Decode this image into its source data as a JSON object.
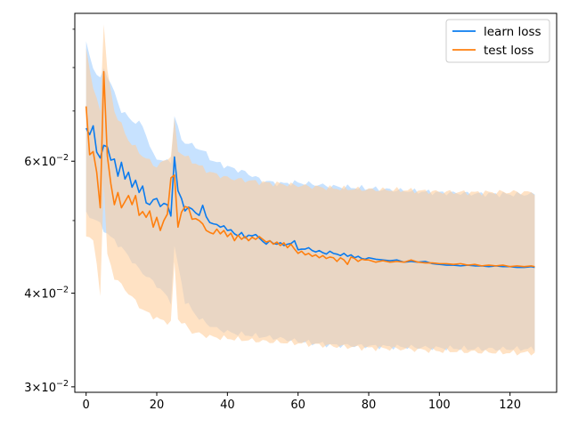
{
  "chart_data": {
    "type": "line",
    "title": "",
    "xlabel": "",
    "ylabel": "",
    "xlim": [
      -3.2,
      133.2
    ],
    "ylim": [
      0.0295,
      0.0945
    ],
    "yscale": "log",
    "grid": false,
    "legend_placement": "top-right",
    "x_ticks": [
      0,
      20,
      40,
      60,
      80,
      100,
      120
    ],
    "x_tick_labels": [
      "0",
      "20",
      "40",
      "60",
      "80",
      "100",
      "120"
    ],
    "y_ticks": [
      0.03,
      0.04,
      0.06
    ],
    "y_tick_labels": [
      {
        "base": "3",
        "exp": "−2"
      },
      {
        "base": "4",
        "exp": "−2"
      },
      {
        "base": "6",
        "exp": "−2"
      }
    ],
    "y_minor_ticks": [
      0.05,
      0.07,
      0.08,
      0.09
    ],
    "series": [
      {
        "name": "learn loss",
        "color": "#0a7bef",
        "band_color": "#8fc6ff",
        "knots": [
          [
            0,
            0.0664
          ],
          [
            1,
            0.0651
          ],
          [
            2,
            0.0669
          ],
          [
            3,
            0.0617
          ],
          [
            4,
            0.0606
          ],
          [
            5,
            0.063
          ],
          [
            6,
            0.0627
          ],
          [
            7,
            0.0602
          ],
          [
            8,
            0.0604
          ],
          [
            9,
            0.0573
          ],
          [
            10,
            0.0598
          ],
          [
            11,
            0.0568
          ],
          [
            12,
            0.058
          ],
          [
            13,
            0.0554
          ],
          [
            14,
            0.0566
          ],
          [
            15,
            0.0545
          ],
          [
            16,
            0.0556
          ],
          [
            17,
            0.0528
          ],
          [
            18,
            0.0525
          ],
          [
            19,
            0.0533
          ],
          [
            20,
            0.0535
          ],
          [
            21,
            0.0522
          ],
          [
            22,
            0.0527
          ],
          [
            23,
            0.0525
          ],
          [
            24,
            0.0507
          ],
          [
            25,
            0.0608
          ],
          [
            26,
            0.0548
          ],
          [
            27,
            0.0535
          ],
          [
            28,
            0.0515
          ],
          [
            29,
            0.0521
          ],
          [
            30,
            0.0518
          ],
          [
            31,
            0.0512
          ],
          [
            32,
            0.0508
          ],
          [
            33,
            0.0524
          ],
          [
            34,
            0.0506
          ],
          [
            35,
            0.0497
          ],
          [
            36,
            0.0495
          ],
          [
            37,
            0.0494
          ],
          [
            38,
            0.049
          ],
          [
            39,
            0.0492
          ],
          [
            40,
            0.0485
          ],
          [
            41,
            0.0486
          ],
          [
            42,
            0.048
          ],
          [
            43,
            0.0477
          ],
          [
            44,
            0.0482
          ],
          [
            45,
            0.0474
          ],
          [
            46,
            0.0478
          ],
          [
            47,
            0.0477
          ],
          [
            48,
            0.0479
          ],
          [
            49,
            0.0474
          ],
          [
            50,
            0.0469
          ],
          [
            51,
            0.0465
          ],
          [
            52,
            0.047
          ],
          [
            53,
            0.0466
          ],
          [
            54,
            0.0465
          ],
          [
            55,
            0.0467
          ],
          [
            56,
            0.0463
          ],
          [
            57,
            0.0465
          ],
          [
            58,
            0.0466
          ],
          [
            59,
            0.047
          ],
          [
            60,
            0.0457
          ],
          [
            61,
            0.0458
          ],
          [
            62,
            0.0458
          ],
          [
            63,
            0.046
          ],
          [
            64,
            0.0456
          ],
          [
            65,
            0.0454
          ],
          [
            66,
            0.0456
          ],
          [
            67,
            0.0453
          ],
          [
            68,
            0.0451
          ],
          [
            69,
            0.0455
          ],
          [
            70,
            0.0452
          ],
          [
            71,
            0.0451
          ],
          [
            72,
            0.0449
          ],
          [
            73,
            0.0452
          ],
          [
            74,
            0.0448
          ],
          [
            75,
            0.045
          ],
          [
            76,
            0.0446
          ],
          [
            77,
            0.0448
          ],
          [
            78,
            0.0445
          ],
          [
            79,
            0.0444
          ],
          [
            80,
            0.0446
          ],
          [
            82,
            0.0444
          ],
          [
            84,
            0.0443
          ],
          [
            86,
            0.0442
          ],
          [
            88,
            0.0443
          ],
          [
            90,
            0.044
          ],
          [
            92,
            0.0441
          ],
          [
            94,
            0.044
          ],
          [
            96,
            0.0441
          ],
          [
            98,
            0.0438
          ],
          [
            100,
            0.0437
          ],
          [
            102,
            0.0436
          ],
          [
            104,
            0.0436
          ],
          [
            106,
            0.0435
          ],
          [
            108,
            0.0436
          ],
          [
            110,
            0.0435
          ],
          [
            112,
            0.0435
          ],
          [
            114,
            0.0434
          ],
          [
            116,
            0.0435
          ],
          [
            118,
            0.0434
          ],
          [
            120,
            0.0434
          ],
          [
            122,
            0.0433
          ],
          [
            124,
            0.0433
          ],
          [
            126,
            0.0434
          ],
          [
            127,
            0.0433
          ]
        ],
        "band_upper": [
          [
            0,
            0.086
          ],
          [
            2,
            0.08
          ],
          [
            4,
            0.077
          ],
          [
            5,
            0.08
          ],
          [
            7,
            0.076
          ],
          [
            10,
            0.07
          ],
          [
            13,
            0.068
          ],
          [
            16,
            0.067
          ],
          [
            19,
            0.061
          ],
          [
            22,
            0.06
          ],
          [
            24,
            0.06
          ],
          [
            25,
            0.069
          ],
          [
            27,
            0.064
          ],
          [
            30,
            0.063
          ],
          [
            33,
            0.062
          ],
          [
            36,
            0.06
          ],
          [
            40,
            0.059
          ],
          [
            45,
            0.058
          ],
          [
            50,
            0.0565
          ],
          [
            55,
            0.056
          ],
          [
            60,
            0.0562
          ],
          [
            70,
            0.0555
          ],
          [
            80,
            0.0552
          ],
          [
            90,
            0.0548
          ],
          [
            100,
            0.0545
          ],
          [
            110,
            0.0543
          ],
          [
            120,
            0.0542
          ],
          [
            127,
            0.0542
          ]
        ],
        "band_lower": [
          [
            0,
            0.051
          ],
          [
            3,
            0.05
          ],
          [
            6,
            0.048
          ],
          [
            10,
            0.046
          ],
          [
            15,
            0.043
          ],
          [
            20,
            0.041
          ],
          [
            24,
            0.039
          ],
          [
            25,
            0.046
          ],
          [
            28,
            0.039
          ],
          [
            32,
            0.037
          ],
          [
            36,
            0.036
          ],
          [
            40,
            0.0355
          ],
          [
            45,
            0.0352
          ],
          [
            50,
            0.035
          ],
          [
            55,
            0.0348
          ],
          [
            60,
            0.0345
          ],
          [
            65,
            0.0343
          ],
          [
            70,
            0.0341
          ],
          [
            80,
            0.034
          ],
          [
            90,
            0.0339
          ],
          [
            100,
            0.0338
          ],
          [
            110,
            0.0337
          ],
          [
            120,
            0.0337
          ],
          [
            127,
            0.0337
          ]
        ]
      },
      {
        "name": "test loss",
        "color": "#ff7f0e",
        "band_color": "#ffcf9c",
        "knots": [
          [
            0,
            0.071
          ],
          [
            1,
            0.0612
          ],
          [
            2,
            0.0618
          ],
          [
            3,
            0.058
          ],
          [
            4,
            0.052
          ],
          [
            5,
            0.079
          ],
          [
            6,
            0.061
          ],
          [
            7,
            0.056
          ],
          [
            8,
            0.0525
          ],
          [
            9,
            0.0545
          ],
          [
            10,
            0.052
          ],
          [
            11,
            0.053
          ],
          [
            12,
            0.054
          ],
          [
            13,
            0.0525
          ],
          [
            14,
            0.054
          ],
          [
            15,
            0.0508
          ],
          [
            16,
            0.0514
          ],
          [
            17,
            0.0505
          ],
          [
            18,
            0.0515
          ],
          [
            19,
            0.049
          ],
          [
            20,
            0.0505
          ],
          [
            21,
            0.0485
          ],
          [
            22,
            0.05
          ],
          [
            23,
            0.051
          ],
          [
            24,
            0.057
          ],
          [
            25,
            0.0575
          ],
          [
            26,
            0.049
          ],
          [
            27,
            0.0513
          ],
          [
            28,
            0.0522
          ],
          [
            29,
            0.052
          ],
          [
            30,
            0.0502
          ],
          [
            31,
            0.0503
          ],
          [
            32,
            0.05
          ],
          [
            33,
            0.0495
          ],
          [
            34,
            0.0485
          ],
          [
            35,
            0.0482
          ],
          [
            36,
            0.048
          ],
          [
            37,
            0.0487
          ],
          [
            38,
            0.048
          ],
          [
            39,
            0.0485
          ],
          [
            40,
            0.0476
          ],
          [
            41,
            0.0481
          ],
          [
            42,
            0.047
          ],
          [
            43,
            0.0478
          ],
          [
            44,
            0.0472
          ],
          [
            45,
            0.0476
          ],
          [
            46,
            0.047
          ],
          [
            47,
            0.0475
          ],
          [
            48,
            0.0472
          ],
          [
            49,
            0.0476
          ],
          [
            50,
            0.0472
          ],
          [
            51,
            0.0468
          ],
          [
            52,
            0.047
          ],
          [
            53,
            0.0465
          ],
          [
            54,
            0.0468
          ],
          [
            55,
            0.0463
          ],
          [
            56,
            0.0467
          ],
          [
            57,
            0.046
          ],
          [
            58,
            0.0465
          ],
          [
            59,
            0.0458
          ],
          [
            60,
            0.0452
          ],
          [
            61,
            0.0455
          ],
          [
            62,
            0.045
          ],
          [
            63,
            0.0452
          ],
          [
            64,
            0.0448
          ],
          [
            65,
            0.045
          ],
          [
            66,
            0.0446
          ],
          [
            67,
            0.0449
          ],
          [
            68,
            0.0445
          ],
          [
            69,
            0.0447
          ],
          [
            70,
            0.0446
          ],
          [
            71,
            0.0441
          ],
          [
            72,
            0.0446
          ],
          [
            73,
            0.0443
          ],
          [
            74,
            0.0437
          ],
          [
            75,
            0.0447
          ],
          [
            76,
            0.0445
          ],
          [
            77,
            0.0441
          ],
          [
            78,
            0.0444
          ],
          [
            79,
            0.0443
          ],
          [
            80,
            0.0443
          ],
          [
            82,
            0.044
          ],
          [
            84,
            0.0442
          ],
          [
            86,
            0.044
          ],
          [
            88,
            0.0441
          ],
          [
            90,
            0.044
          ],
          [
            92,
            0.0443
          ],
          [
            94,
            0.044
          ],
          [
            96,
            0.0439
          ],
          [
            98,
            0.0439
          ],
          [
            100,
            0.0438
          ],
          [
            102,
            0.0438
          ],
          [
            104,
            0.0437
          ],
          [
            106,
            0.0438
          ],
          [
            108,
            0.0436
          ],
          [
            110,
            0.0437
          ],
          [
            112,
            0.0435
          ],
          [
            114,
            0.0436
          ],
          [
            116,
            0.0435
          ],
          [
            118,
            0.0436
          ],
          [
            120,
            0.0434
          ],
          [
            122,
            0.0435
          ],
          [
            124,
            0.0434
          ],
          [
            126,
            0.0435
          ],
          [
            127,
            0.0434
          ]
        ],
        "band_upper": [
          [
            0,
            0.085
          ],
          [
            2,
            0.075
          ],
          [
            4,
            0.07
          ],
          [
            5,
            0.092
          ],
          [
            6,
            0.079
          ],
          [
            8,
            0.07
          ],
          [
            12,
            0.064
          ],
          [
            16,
            0.061
          ],
          [
            20,
            0.059
          ],
          [
            24,
            0.061
          ],
          [
            25,
            0.068
          ],
          [
            26,
            0.062
          ],
          [
            30,
            0.06
          ],
          [
            35,
            0.058
          ],
          [
            40,
            0.057
          ],
          [
            50,
            0.0562
          ],
          [
            60,
            0.0557
          ],
          [
            70,
            0.0552
          ],
          [
            80,
            0.055
          ],
          [
            90,
            0.0549
          ],
          [
            100,
            0.0546
          ],
          [
            110,
            0.0545
          ],
          [
            120,
            0.0546
          ],
          [
            127,
            0.0545
          ]
        ],
        "band_lower": [
          [
            0,
            0.048
          ],
          [
            2,
            0.047
          ],
          [
            4,
            0.04
          ],
          [
            5,
            0.056
          ],
          [
            6,
            0.045
          ],
          [
            8,
            0.042
          ],
          [
            12,
            0.04
          ],
          [
            16,
            0.038
          ],
          [
            20,
            0.037
          ],
          [
            24,
            0.0365
          ],
          [
            25,
            0.044
          ],
          [
            26,
            0.037
          ],
          [
            30,
            0.0355
          ],
          [
            35,
            0.035
          ],
          [
            40,
            0.0348
          ],
          [
            50,
            0.0345
          ],
          [
            60,
            0.0343
          ],
          [
            70,
            0.034
          ],
          [
            80,
            0.0338
          ],
          [
            90,
            0.0337
          ],
          [
            100,
            0.0335
          ],
          [
            110,
            0.0334
          ],
          [
            120,
            0.0333
          ],
          [
            127,
            0.0333
          ]
        ]
      }
    ]
  }
}
